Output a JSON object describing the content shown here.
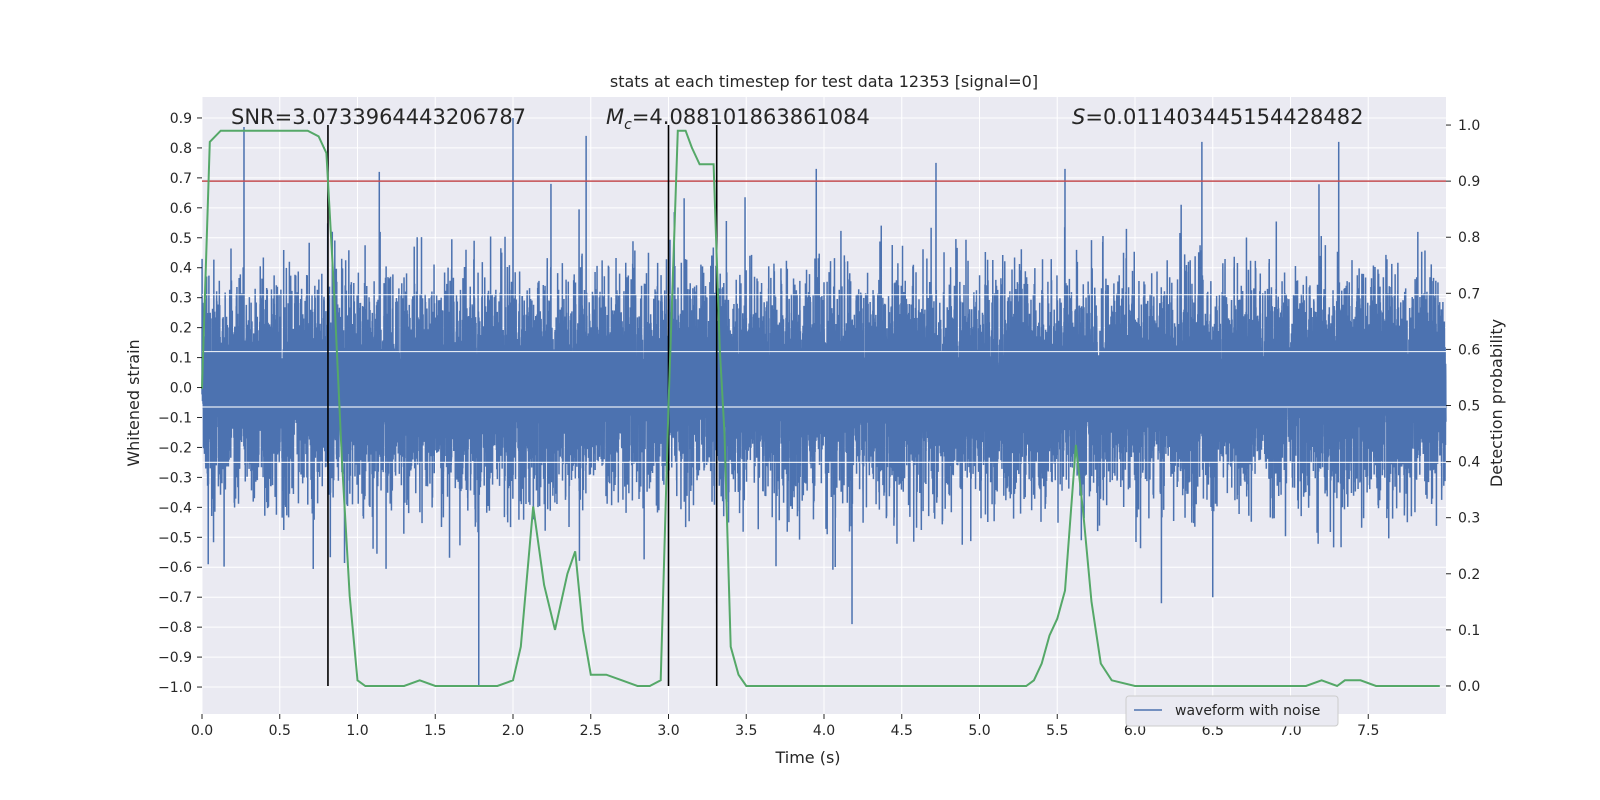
{
  "chart_data": {
    "type": "line",
    "title": "stats at each timestep for test data 12353 [signal=0]",
    "xlabel": "Time (s)",
    "ylabel": "Whitened strain",
    "y2label": "Detection probability",
    "xlim": [
      0.0,
      8.0
    ],
    "ylim": [
      -1.09,
      0.97
    ],
    "y2lim": [
      -0.05,
      1.05
    ],
    "xticks": [
      0.0,
      0.5,
      1.0,
      1.5,
      2.0,
      2.5,
      3.0,
      3.5,
      4.0,
      4.5,
      5.0,
      5.5,
      6.0,
      6.5,
      7.0,
      7.5
    ],
    "yticks": [
      -1.0,
      -0.9,
      -0.8,
      -0.7,
      -0.6,
      -0.5,
      -0.4,
      -0.3,
      -0.2,
      -0.1,
      0.0,
      0.1,
      0.2,
      0.3,
      0.4,
      0.5,
      0.6,
      0.7,
      0.8,
      0.9
    ],
    "y2ticks": [
      0.0,
      0.1,
      0.2,
      0.3,
      0.4,
      0.5,
      0.6,
      0.7,
      0.8,
      0.9,
      1.0
    ],
    "annotations": {
      "snr": "SNR=3.0733964443206787",
      "mc_symbol": "M",
      "mc_sub": "c",
      "mc_value": "=4.088101863861084",
      "s_symbol": "S",
      "s_value": "=0.011403445154428482"
    },
    "threshold": 0.9,
    "vlines": [
      0.81,
      3.0,
      3.31
    ],
    "legend": {
      "label": "waveform with noise",
      "loc": "lower right"
    },
    "colors": {
      "waveform": "#4c72b0",
      "probability": "#55a868",
      "threshold": "#c44e52",
      "vline": "#000000",
      "background": "#eaeaf2",
      "grid": "#ffffff"
    },
    "waveform": {
      "sample_rate": 2048,
      "typical_amplitude": 0.17,
      "peaks": [
        {
          "t": 0.27,
          "v": 0.87
        },
        {
          "t": 1.78,
          "v": -1.0
        },
        {
          "t": 2.0,
          "v": 0.9
        },
        {
          "t": 2.47,
          "v": 0.84
        },
        {
          "t": 6.43,
          "v": 0.82
        },
        {
          "t": 7.31,
          "v": 0.82
        },
        {
          "t": 4.18,
          "v": -0.79
        },
        {
          "t": 4.72,
          "v": 0.75
        },
        {
          "t": 5.55,
          "v": 0.73
        },
        {
          "t": 3.31,
          "v": -0.72
        },
        {
          "t": 0.04,
          "v": -0.59
        },
        {
          "t": 6.17,
          "v": -0.72
        },
        {
          "t": 6.5,
          "v": -0.7
        },
        {
          "t": 3.95,
          "v": 0.73
        },
        {
          "t": 1.14,
          "v": 0.72
        }
      ]
    },
    "probability": {
      "t": [
        0.0,
        0.05,
        0.12,
        0.2,
        0.3,
        0.4,
        0.5,
        0.6,
        0.68,
        0.75,
        0.8,
        0.85,
        0.9,
        0.95,
        1.0,
        1.05,
        1.1,
        1.2,
        1.3,
        1.4,
        1.5,
        1.6,
        1.7,
        1.8,
        1.9,
        2.0,
        2.05,
        2.13,
        2.2,
        2.27,
        2.35,
        2.4,
        2.45,
        2.5,
        2.55,
        2.6,
        2.7,
        2.8,
        2.88,
        2.95,
        3.0,
        3.06,
        3.11,
        3.15,
        3.2,
        3.25,
        3.29,
        3.33,
        3.36,
        3.4,
        3.45,
        3.5,
        3.6,
        3.7,
        3.8,
        3.9,
        4.0,
        4.2,
        4.4,
        4.6,
        4.8,
        5.0,
        5.2,
        5.3,
        5.35,
        5.4,
        5.45,
        5.5,
        5.55,
        5.62,
        5.67,
        5.72,
        5.78,
        5.85,
        6.0,
        6.2,
        6.4,
        6.6,
        6.8,
        7.0,
        7.1,
        7.2,
        7.3,
        7.35,
        7.45,
        7.55,
        7.7,
        7.85,
        7.96
      ],
      "p": [
        0.53,
        0.97,
        0.99,
        0.99,
        0.99,
        0.99,
        0.99,
        0.99,
        0.99,
        0.98,
        0.95,
        0.7,
        0.4,
        0.16,
        0.01,
        0.0,
        0.0,
        0.0,
        0.0,
        0.01,
        0.0,
        0.0,
        0.0,
        0.0,
        0.0,
        0.01,
        0.07,
        0.32,
        0.18,
        0.1,
        0.2,
        0.24,
        0.1,
        0.02,
        0.02,
        0.02,
        0.01,
        0.0,
        0.0,
        0.01,
        0.5,
        0.99,
        0.99,
        0.96,
        0.93,
        0.93,
        0.93,
        0.6,
        0.45,
        0.07,
        0.02,
        0.0,
        0.0,
        0.0,
        0.0,
        0.0,
        0.0,
        0.0,
        0.0,
        0.0,
        0.0,
        0.0,
        0.0,
        0.0,
        0.01,
        0.04,
        0.09,
        0.12,
        0.17,
        0.43,
        0.3,
        0.15,
        0.04,
        0.01,
        0.0,
        0.0,
        0.0,
        0.0,
        0.0,
        0.0,
        0.0,
        0.01,
        0.0,
        0.01,
        0.01,
        0.0,
        0.0,
        0.0,
        0.0
      ]
    }
  }
}
